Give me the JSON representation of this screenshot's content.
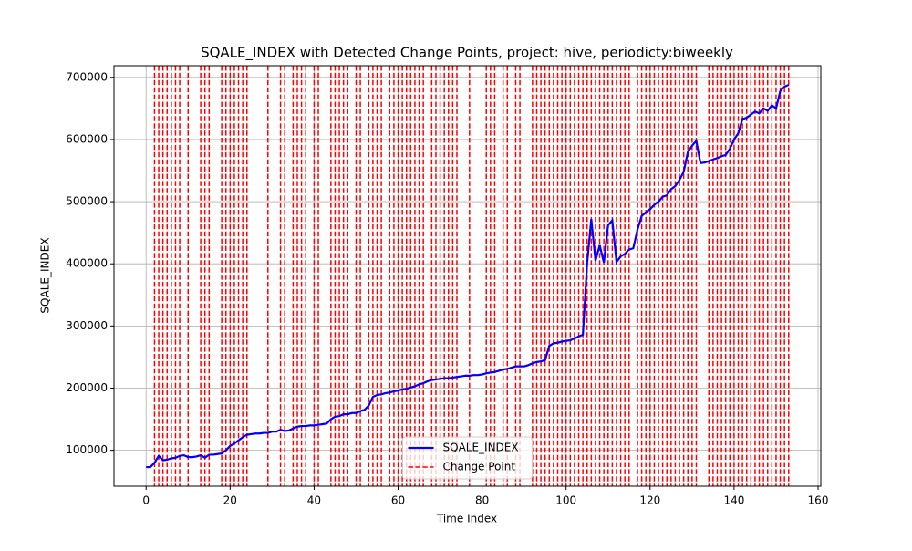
{
  "chart_data": {
    "type": "line",
    "title": "SQALE_INDEX with Detected Change Points, project: hive, periodicty:biweekly",
    "x_label": "Time Index",
    "y_label": "SQALE_INDEX",
    "x": [
      0,
      1,
      2,
      3,
      4,
      5,
      6,
      7,
      8,
      9,
      10,
      11,
      12,
      13,
      14,
      15,
      16,
      17,
      18,
      19,
      20,
      21,
      22,
      23,
      24,
      25,
      26,
      27,
      28,
      29,
      30,
      31,
      32,
      33,
      34,
      35,
      36,
      37,
      38,
      39,
      40,
      41,
      42,
      43,
      44,
      45,
      46,
      47,
      48,
      49,
      50,
      51,
      52,
      53,
      54,
      55,
      56,
      57,
      58,
      59,
      60,
      61,
      62,
      63,
      64,
      65,
      66,
      67,
      68,
      69,
      70,
      71,
      72,
      73,
      74,
      75,
      76,
      77,
      78,
      79,
      80,
      81,
      82,
      83,
      84,
      85,
      86,
      87,
      88,
      89,
      90,
      91,
      92,
      93,
      94,
      95,
      96,
      97,
      98,
      99,
      100,
      101,
      102,
      103,
      104,
      105,
      106,
      107,
      108,
      109,
      110,
      111,
      112,
      113,
      114,
      115,
      116,
      117,
      118,
      119,
      120,
      121,
      122,
      123,
      124,
      125,
      126,
      127,
      128,
      129,
      130,
      131,
      132,
      133,
      134,
      135,
      136,
      137,
      138,
      139,
      140,
      141,
      142,
      143,
      144,
      145,
      146,
      147,
      148,
      149,
      150,
      151,
      152,
      153
    ],
    "series": [
      {
        "name": "SQALE_INDEX",
        "color": "#0000ff",
        "values": [
          73000,
          73000,
          80000,
          91000,
          84000,
          85000,
          87000,
          88000,
          91000,
          92000,
          89000,
          89000,
          90000,
          92000,
          88000,
          93000,
          93000,
          94000,
          95000,
          100000,
          107000,
          111000,
          116000,
          121000,
          125000,
          126000,
          127000,
          127000,
          128000,
          128000,
          130000,
          130000,
          133000,
          131000,
          132000,
          135000,
          138000,
          139000,
          139000,
          140000,
          140000,
          141000,
          142000,
          143000,
          150000,
          154000,
          155000,
          158000,
          158000,
          160000,
          160000,
          163000,
          165000,
          172000,
          186000,
          189000,
          190000,
          192000,
          193000,
          195000,
          196000,
          198000,
          199000,
          201000,
          203000,
          206000,
          208000,
          211000,
          213000,
          214000,
          215000,
          216000,
          216000,
          217000,
          218000,
          219000,
          220000,
          220000,
          221000,
          221000,
          222000,
          224000,
          225000,
          226000,
          228000,
          230000,
          231000,
          233000,
          235000,
          235000,
          235000,
          237000,
          240000,
          242000,
          243000,
          245000,
          268000,
          272000,
          273000,
          275000,
          276000,
          277000,
          280000,
          283000,
          286000,
          400000,
          472000,
          405000,
          430000,
          402000,
          462000,
          470000,
          403000,
          412000,
          416000,
          423000,
          425000,
          455000,
          477000,
          483000,
          488000,
          495000,
          500000,
          508000,
          510000,
          520000,
          525000,
          535000,
          548000,
          580000,
          590000,
          598000,
          562000,
          563000,
          565000,
          568000,
          570000,
          573000,
          575000,
          585000,
          600000,
          610000,
          633000,
          635000,
          640000,
          645000,
          642000,
          650000,
          646000,
          655000,
          650000,
          678000,
          685000,
          688000
        ]
      }
    ],
    "change_points": {
      "name": "Change Point",
      "color": "#ff0000",
      "x": [
        2,
        3,
        4,
        5,
        6,
        7,
        8,
        10,
        13,
        14,
        15,
        18,
        19,
        20,
        21,
        22,
        23,
        24,
        29,
        32,
        33,
        35,
        36,
        37,
        38,
        40,
        41,
        44,
        45,
        46,
        47,
        48,
        50,
        51,
        53,
        54,
        55,
        56,
        58,
        59,
        60,
        61,
        62,
        63,
        64,
        65,
        66,
        68,
        69,
        70,
        71,
        72,
        73,
        74,
        77,
        81,
        82,
        83,
        85,
        86,
        88,
        89,
        92,
        93,
        94,
        95,
        96,
        97,
        98,
        99,
        100,
        101,
        102,
        103,
        104,
        105,
        106,
        107,
        108,
        109,
        110,
        111,
        112,
        113,
        114,
        115,
        117,
        118,
        119,
        120,
        121,
        122,
        123,
        124,
        125,
        126,
        127,
        128,
        129,
        130,
        131,
        134,
        135,
        136,
        137,
        138,
        139,
        140,
        141,
        142,
        143,
        144,
        145,
        146,
        147,
        148,
        149,
        150,
        151,
        152,
        153
      ]
    },
    "xlim": [
      -7.65,
      160.65
    ],
    "ylim": [
      42250,
      718750
    ],
    "xticks": [
      0,
      20,
      40,
      60,
      80,
      100,
      120,
      140,
      160
    ],
    "yticks": [
      100000,
      200000,
      300000,
      400000,
      500000,
      600000,
      700000
    ],
    "grid": true,
    "legend": "lower center"
  }
}
